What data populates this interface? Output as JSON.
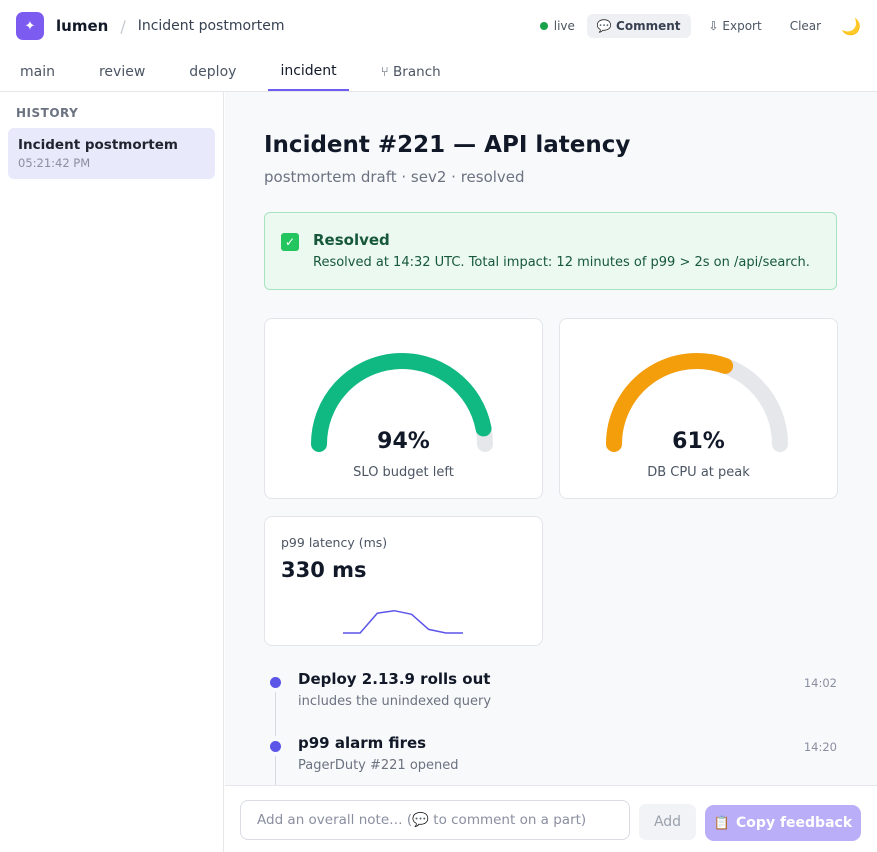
{
  "app": {
    "logo_icon": "sparkle-icon",
    "brand": "lumen",
    "crumb_sep": "/",
    "doc_title": "Incident postmortem"
  },
  "toolbar": {
    "live_label": "live",
    "live_color": "#16a34a",
    "comment_label": "💬 Comment",
    "export_label": "⇩ Export",
    "clear_label": "Clear",
    "theme_icon": "🌙"
  },
  "tabs": [
    {
      "label": "main",
      "active": false
    },
    {
      "label": "review",
      "active": false
    },
    {
      "label": "deploy",
      "active": false
    },
    {
      "label": "incident",
      "active": true
    },
    {
      "label": "⑂ Branch",
      "active": false
    }
  ],
  "sidebar": {
    "heading": "HISTORY",
    "items": [
      {
        "title": "Incident postmortem",
        "time": "05:21:42 PM",
        "selected": true
      }
    ]
  },
  "main": {
    "title": "Incident #221 — API latency",
    "subtitle": "postmortem draft · sev2 · resolved",
    "banner": {
      "icon": "✅",
      "title": "Resolved",
      "text": "Resolved at 14:32 UTC. Total impact: 12 minutes of p99 > 2s on /api/search."
    },
    "gauges": [
      {
        "value_text": "94%",
        "value": 0.94,
        "label": "SLO budget left",
        "color": "#10b981"
      },
      {
        "value_text": "61%",
        "value": 0.61,
        "label": "DB CPU at peak",
        "color": "#f59e0b"
      }
    ],
    "spark": {
      "label": "p99 latency (ms)",
      "value_text": "330 ms",
      "series": [
        0,
        0,
        0.55,
        0.62,
        0.52,
        0.1,
        0,
        0
      ],
      "color": "#5b55e8"
    },
    "timeline": [
      {
        "title": "Deploy 2.13.9 rolls out",
        "desc": "includes the unindexed query",
        "time": "14:02"
      },
      {
        "title": "p99 alarm fires",
        "desc": "PagerDuty #221 opened",
        "time": "14:20"
      }
    ]
  },
  "footer": {
    "note_placeholder": "Add an overall note… (💬 to comment on a part)",
    "add_label": "Add",
    "copy_icon": "📋",
    "copy_label": "Copy feedback"
  }
}
